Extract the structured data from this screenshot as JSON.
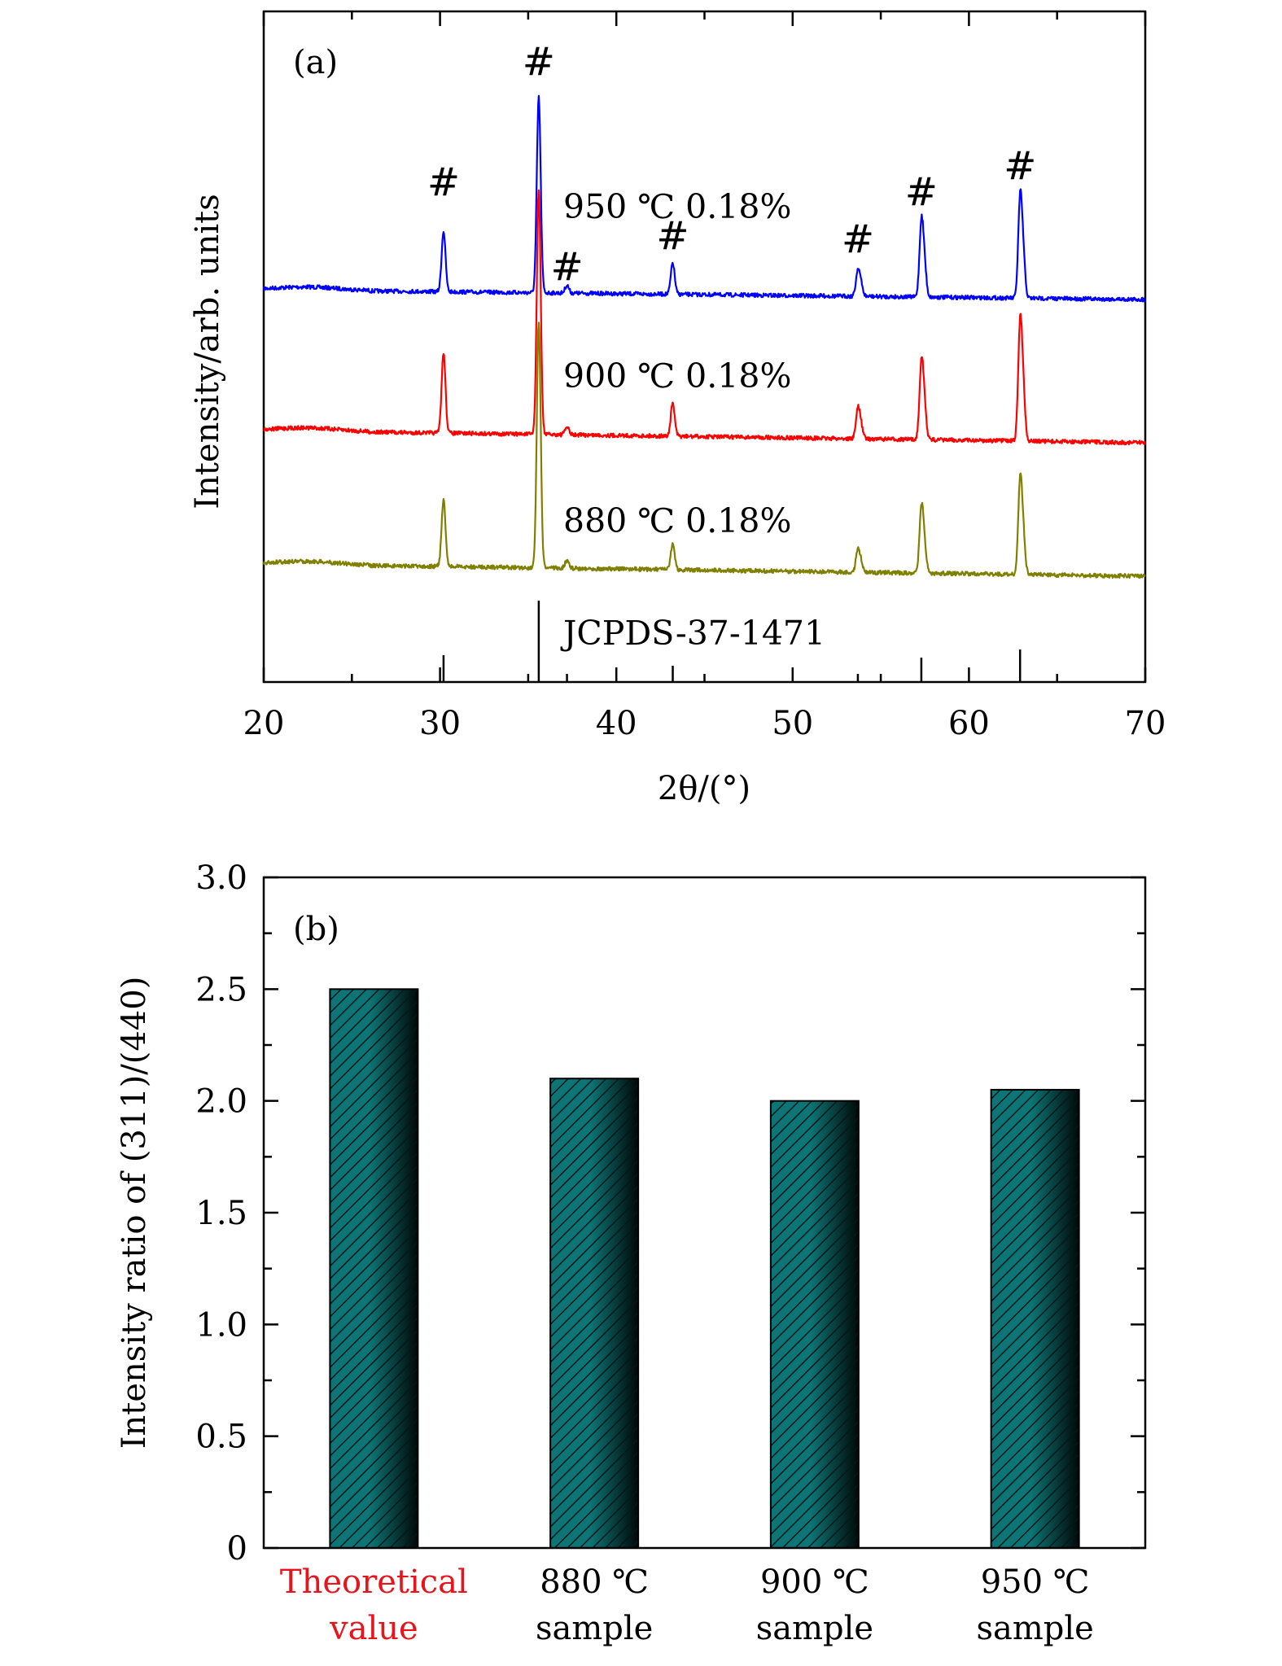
{
  "chart_data": [
    {
      "type": "line",
      "panel_label": "(a)",
      "xlabel": "2θ/(°)",
      "ylabel": "Intensity/arb. units",
      "xlim": [
        20,
        70
      ],
      "x_ticks": [
        "20",
        "30",
        "40",
        "50",
        "60",
        "70"
      ],
      "reference_label": "JCPDS-37-1471",
      "reference_peaks": [
        {
          "x": 30.2,
          "rel": 0.33
        },
        {
          "x": 35.6,
          "rel": 1.0
        },
        {
          "x": 37.2,
          "rel": 0.1
        },
        {
          "x": 43.2,
          "rel": 0.2
        },
        {
          "x": 53.7,
          "rel": 0.1
        },
        {
          "x": 57.3,
          "rel": 0.3
        },
        {
          "x": 62.9,
          "rel": 0.4
        }
      ],
      "peak_marker": "#",
      "marked_peaks": [
        30.2,
        35.6,
        37.2,
        43.2,
        53.7,
        57.3,
        62.9
      ],
      "series": [
        {
          "name": "950 ℃ 0.18%",
          "color": "#0000ff",
          "peaks": [
            {
              "x": 30.2,
              "h": 0.31
            },
            {
              "x": 35.6,
              "h": 1.0
            },
            {
              "x": 37.2,
              "h": 0.04
            },
            {
              "x": 43.2,
              "h": 0.16
            },
            {
              "x": 53.7,
              "h": 0.13
            },
            {
              "x": 57.3,
              "h": 0.37
            },
            {
              "x": 62.9,
              "h": 0.49
            }
          ]
        },
        {
          "name": "900 ℃ 0.18%",
          "color": "#ff0000",
          "peaks": [
            {
              "x": 30.2,
              "h": 0.41
            },
            {
              "x": 35.6,
              "h": 1.25
            },
            {
              "x": 37.2,
              "h": 0.04
            },
            {
              "x": 43.2,
              "h": 0.17
            },
            {
              "x": 53.7,
              "h": 0.15
            },
            {
              "x": 57.3,
              "h": 0.38
            },
            {
              "x": 62.9,
              "h": 0.58
            }
          ]
        },
        {
          "name": "880 ℃ 0.18%",
          "color": "#808000",
          "peaks": [
            {
              "x": 30.2,
              "h": 0.34
            },
            {
              "x": 35.6,
              "h": 1.25
            },
            {
              "x": 37.2,
              "h": 0.04
            },
            {
              "x": 43.2,
              "h": 0.13
            },
            {
              "x": 53.7,
              "h": 0.11
            },
            {
              "x": 57.3,
              "h": 0.32
            },
            {
              "x": 62.9,
              "h": 0.46
            }
          ]
        }
      ]
    },
    {
      "type": "bar",
      "panel_label": "(b)",
      "ylabel": "Intensity ratio of (311)/(440)",
      "ylim": [
        0,
        3.0
      ],
      "y_ticks": [
        "0",
        "0.5",
        "1.0",
        "1.5",
        "2.0",
        "2.5",
        "3.0"
      ],
      "categories": [
        {
          "line1": "Theoretical",
          "line2": "value",
          "color": "#e8141c"
        },
        {
          "line1": "880 ℃",
          "line2": "sample",
          "color": "#000000"
        },
        {
          "line1": "900 ℃",
          "line2": "sample",
          "color": "#000000"
        },
        {
          "line1": "950 ℃",
          "line2": "sample",
          "color": "#000000"
        }
      ],
      "values": [
        2.5,
        2.1,
        2.0,
        2.05
      ],
      "bar_color": "#0a6b6b",
      "grid": false
    }
  ]
}
